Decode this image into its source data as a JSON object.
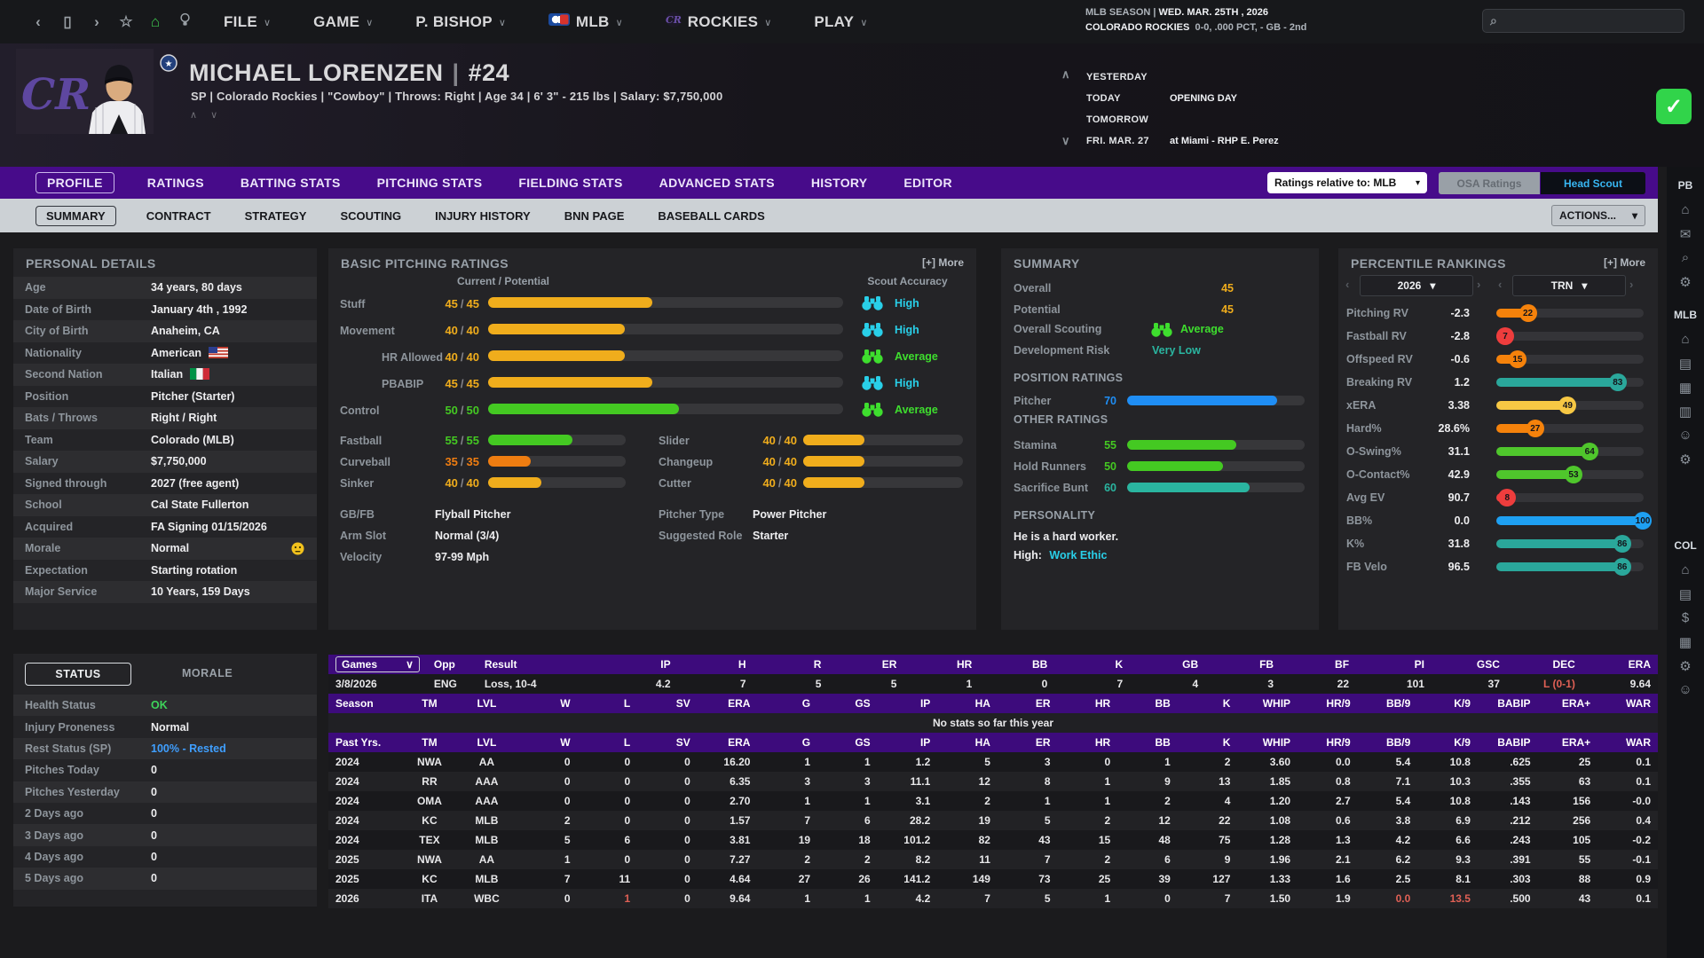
{
  "topbar": {
    "nav_icons": [
      {
        "name": "back-icon",
        "glyph": "‹"
      },
      {
        "name": "window-icon",
        "glyph": "▯"
      },
      {
        "name": "forward-icon",
        "glyph": "›"
      },
      {
        "name": "bookmark-star-icon",
        "glyph": "☆"
      },
      {
        "name": "home-icon",
        "glyph": "⌂",
        "color": "#3ec94e"
      },
      {
        "name": "lightbulb-icon",
        "glyph": "bulb-svg"
      }
    ],
    "menus": [
      {
        "label": "FILE",
        "logo": ""
      },
      {
        "label": "GAME",
        "logo": ""
      },
      {
        "label": "P. BISHOP",
        "logo": ""
      },
      {
        "label": "MLB",
        "logo": "mlb"
      },
      {
        "label": "ROCKIES",
        "logo": "rockies"
      },
      {
        "label": "PLAY",
        "logo": ""
      }
    ],
    "season_line_1a": "MLB SEASON  |",
    "season_line_1b": "WED. MAR. 25TH , 2026",
    "season_line_2a": "COLORADO ROCKIES",
    "season_line_2b": "0-0, .000 PCT, - GB - 2nd",
    "search_icon": "⌕"
  },
  "header": {
    "name": "MICHAEL LORENZEN",
    "sep": "|",
    "number": "#24",
    "subtitle": "SP | Colorado Rockies  |  \"Cowboy\" | Throws: Right  |  Age 34  |  6' 3\"  - 215 lbs  |  Salary: $7,750,000",
    "photo_nav": "∧ ∨",
    "schedule": [
      {
        "label": "YESTERDAY",
        "value": ""
      },
      {
        "label": "TODAY",
        "value": "OPENING DAY"
      },
      {
        "label": "TOMORROW",
        "value": ""
      },
      {
        "label": "FRI. MAR. 27",
        "value": "at Miami - RHP E. Perez"
      }
    ],
    "check_glyph": "✓"
  },
  "tabs_main": {
    "items": [
      "PROFILE",
      "RATINGS",
      "BATTING STATS",
      "PITCHING STATS",
      "FIELDING STATS",
      "ADVANCED STATS",
      "HISTORY",
      "EDITOR"
    ],
    "active": "PROFILE",
    "ratings_dropdown": "Ratings relative to: MLB",
    "osa": "OSA Ratings",
    "head_scout": "Head Scout"
  },
  "tabs_sub": {
    "items": [
      "SUMMARY",
      "CONTRACT",
      "STRATEGY",
      "SCOUTING",
      "INJURY HISTORY",
      "BNN PAGE",
      "BASEBALL CARDS"
    ],
    "active": "SUMMARY",
    "actions": "ACTIONS..."
  },
  "personal": {
    "title": "PERSONAL DETAILS",
    "rows": [
      {
        "label": "Age",
        "value": "34 years, 80 days"
      },
      {
        "label": "Date of Birth",
        "value": "January 4th , 1992"
      },
      {
        "label": "City of Birth",
        "value": "Anaheim, CA"
      },
      {
        "label": "Nationality",
        "value": "American",
        "flag": "us"
      },
      {
        "label": "Second Nation",
        "value": "Italian",
        "flag": "it"
      },
      {
        "label": "Position",
        "value": "Pitcher (Starter)"
      },
      {
        "label": "Bats / Throws",
        "value": "Right / Right"
      },
      {
        "label": "Team",
        "value": "Colorado (MLB)"
      },
      {
        "label": "Salary",
        "value": "$7,750,000"
      },
      {
        "label": "Signed through",
        "value": "2027 (free agent)"
      },
      {
        "label": "School",
        "value": "Cal State Fullerton"
      },
      {
        "label": "Acquired",
        "value": "FA Signing 01/15/2026"
      },
      {
        "label": "Morale",
        "value": "Normal",
        "smiley": true
      },
      {
        "label": "Expectation",
        "value": "Starting rotation"
      },
      {
        "label": "Major Service",
        "value": "10 Years, 159 Days"
      }
    ]
  },
  "status": {
    "button": "STATUS",
    "morale_tab": "MORALE",
    "rows": [
      {
        "label": "Health Status",
        "value": "OK",
        "color": "#3ed45a"
      },
      {
        "label": "Injury Proneness",
        "value": "Normal"
      },
      {
        "label": "Rest Status (SP)",
        "value": "100% - Rested",
        "color": "#3f9fff"
      },
      {
        "label": "Pitches Today",
        "value": "0"
      },
      {
        "label": "Pitches Yesterday",
        "value": "0"
      },
      {
        "label": "2 Days ago",
        "value": "0"
      },
      {
        "label": "3 Days ago",
        "value": "0"
      },
      {
        "label": "4 Days ago",
        "value": "0"
      },
      {
        "label": "5 Days ago",
        "value": "0"
      }
    ]
  },
  "pitching": {
    "title": "BASIC PITCHING RATINGS",
    "more": "[+] More",
    "col_current": "Current / Potential",
    "col_accuracy": "Scout Accuracy",
    "core": [
      {
        "label": "Stuff",
        "indent": false,
        "cur": "45",
        "pot": "45",
        "val": 45,
        "color": "#f0ad1c",
        "acc": "High",
        "acc_color": "#29cfe8"
      },
      {
        "label": "Movement",
        "indent": false,
        "cur": "40",
        "pot": "40",
        "val": 40,
        "color": "#f0ad1c",
        "acc": "High",
        "acc_color": "#29cfe8"
      },
      {
        "label": "HR Allowed",
        "indent": true,
        "cur": "40",
        "pot": "40",
        "val": 40,
        "color": "#f0ad1c",
        "acc": "Average",
        "acc_color": "#3ede2e"
      },
      {
        "label": "PBABIP",
        "indent": true,
        "cur": "45",
        "pot": "45",
        "val": 45,
        "color": "#f0ad1c",
        "acc": "High",
        "acc_color": "#29cfe8"
      },
      {
        "label": "Control",
        "indent": false,
        "cur": "50",
        "pot": "50",
        "val": 50,
        "color": "#44c922",
        "acc": "Average",
        "acc_color": "#3ede2e"
      }
    ],
    "pitches_left": [
      {
        "label": "Fastball",
        "cur": "55",
        "pot": "55",
        "val": 55,
        "color": "#44c922"
      },
      {
        "label": "Curveball",
        "cur": "35",
        "pot": "35",
        "val": 35,
        "color": "#ef7d11"
      },
      {
        "label": "Sinker",
        "cur": "40",
        "pot": "40",
        "val": 40,
        "color": "#f0ad1c"
      }
    ],
    "pitches_right": [
      {
        "label": "Slider",
        "cur": "40",
        "pot": "40",
        "val": 40,
        "color": "#f0ad1c"
      },
      {
        "label": "Changeup",
        "cur": "40",
        "pot": "40",
        "val": 40,
        "color": "#f0ad1c"
      },
      {
        "label": "Cutter",
        "cur": "40",
        "pot": "40",
        "val": 40,
        "color": "#f0ad1c"
      }
    ],
    "info_left": [
      {
        "label": "GB/FB",
        "value": "Flyball Pitcher"
      },
      {
        "label": "Arm Slot",
        "value": "Normal (3/4)"
      },
      {
        "label": "Velocity",
        "value": "97-99 Mph"
      }
    ],
    "info_right": [
      {
        "label": "Pitcher Type",
        "value": "Power Pitcher"
      },
      {
        "label": "Suggested Role",
        "value": "Starter"
      }
    ]
  },
  "summary": {
    "title": "SUMMARY",
    "simple": [
      {
        "label": "Overall",
        "value": "45",
        "color": "#f0ad1c",
        "type": "num"
      },
      {
        "label": "Potential",
        "value": "45",
        "color": "#f0ad1c",
        "type": "num"
      },
      {
        "label": "Overall Scouting",
        "value": "Average",
        "color": "#3ede2e",
        "type": "scout"
      },
      {
        "label": "Development Risk",
        "value": "Very Low",
        "color": "#2ab5a0",
        "type": "text"
      }
    ],
    "position_header": "POSITION RATINGS",
    "position": [
      {
        "label": "Pitcher",
        "val": 70,
        "color": "#1f8ef5"
      }
    ],
    "other_header": "OTHER RATINGS",
    "other": [
      {
        "label": "Stamina",
        "val": 55,
        "color": "#44c922"
      },
      {
        "label": "Hold Runners",
        "val": 50,
        "color": "#44c922"
      },
      {
        "label": "Sacrifice Bunt",
        "val": 60,
        "color": "#2ab5a0"
      }
    ],
    "personality_header": "PERSONALITY",
    "personality_line": "He is a hard worker.",
    "personality_high_label": "High:",
    "personality_high_value": "Work Ethic",
    "high_value_color": "#29cfe8"
  },
  "percentile": {
    "title": "PERCENTILE RANKINGS",
    "more": "[+] More",
    "year": "2026",
    "scope": "TRN",
    "rows": [
      {
        "label": "Pitching RV",
        "value": "-2.3",
        "pct": 22,
        "color": "#f5820b"
      },
      {
        "label": "Fastball RV",
        "value": "-2.8",
        "pct": 7,
        "color": "#ee3d3d"
      },
      {
        "label": "Offspeed RV",
        "value": "-0.6",
        "pct": 15,
        "color": "#f5820b"
      },
      {
        "label": "Breaking RV",
        "value": "1.2",
        "pct": 83,
        "color": "#2aa79b"
      },
      {
        "label": "xERA",
        "value": "3.38",
        "pct": 49,
        "color": "#f7c844"
      },
      {
        "label": "Hard%",
        "value": "28.6%",
        "pct": 27,
        "color": "#f5820b"
      },
      {
        "label": "O-Swing%",
        "value": "31.1",
        "pct": 64,
        "color": "#4fc62c"
      },
      {
        "label": "O-Contact%",
        "value": "42.9",
        "pct": 53,
        "color": "#4fc62c"
      },
      {
        "label": "Avg EV",
        "value": "90.7",
        "pct": 8,
        "color": "#ee3d3d"
      },
      {
        "label": "BB%",
        "value": "0.0",
        "pct": 100,
        "color": "#1ea0f2"
      },
      {
        "label": "K%",
        "value": "31.8",
        "pct": 86,
        "color": "#2aa79b"
      },
      {
        "label": "FB Velo",
        "value": "96.5",
        "pct": 86,
        "color": "#2aa79b"
      }
    ]
  },
  "stats": {
    "games_cols": [
      "Games",
      "Opp",
      "Result",
      "IP",
      "H",
      "R",
      "ER",
      "HR",
      "BB",
      "K",
      "GB",
      "FB",
      "BF",
      "PI",
      "GSC",
      "DEC",
      "ERA"
    ],
    "games_row": {
      "cells": [
        "3/8/2026",
        "ENG",
        "Loss, 10-4",
        "4.2",
        "7",
        "5",
        "5",
        "1",
        "0",
        "7",
        "4",
        "3",
        "22",
        "101",
        "37",
        "L (0-1)",
        "9.64"
      ],
      "red": [
        15
      ]
    },
    "season_cols": [
      "Season",
      "TM",
      "LVL",
      "W",
      "L",
      "SV",
      "ERA",
      "G",
      "GS",
      "IP",
      "HA",
      "ER",
      "HR",
      "BB",
      "K",
      "WHIP",
      "HR/9",
      "BB/9",
      "K/9",
      "BABIP",
      "ERA+",
      "WAR"
    ],
    "no_stats": "No stats so far this year",
    "past_cols": [
      "Past Yrs.",
      "TM",
      "LVL",
      "W",
      "L",
      "SV",
      "ERA",
      "G",
      "GS",
      "IP",
      "HA",
      "ER",
      "HR",
      "BB",
      "K",
      "WHIP",
      "HR/9",
      "BB/9",
      "K/9",
      "BABIP",
      "ERA+",
      "WAR"
    ],
    "past_rows": [
      {
        "cells": [
          "2024",
          "NWA",
          "AA",
          "0",
          "0",
          "0",
          "16.20",
          "1",
          "1",
          "1.2",
          "5",
          "3",
          "0",
          "1",
          "2",
          "3.60",
          "0.0",
          "5.4",
          "10.8",
          ".625",
          "25",
          "0.1"
        ],
        "red": []
      },
      {
        "cells": [
          "2024",
          "RR",
          "AAA",
          "0",
          "0",
          "0",
          "6.35",
          "3",
          "3",
          "11.1",
          "12",
          "8",
          "1",
          "9",
          "13",
          "1.85",
          "0.8",
          "7.1",
          "10.3",
          ".355",
          "63",
          "0.1"
        ],
        "red": []
      },
      {
        "cells": [
          "2024",
          "OMA",
          "AAA",
          "0",
          "0",
          "0",
          "2.70",
          "1",
          "1",
          "3.1",
          "2",
          "1",
          "1",
          "2",
          "4",
          "1.20",
          "2.7",
          "5.4",
          "10.8",
          ".143",
          "156",
          "-0.0"
        ],
        "red": []
      },
      {
        "cells": [
          "2024",
          "KC",
          "MLB",
          "2",
          "0",
          "0",
          "1.57",
          "7",
          "6",
          "28.2",
          "19",
          "5",
          "2",
          "12",
          "22",
          "1.08",
          "0.6",
          "3.8",
          "6.9",
          ".212",
          "256",
          "0.4"
        ],
        "red": []
      },
      {
        "cells": [
          "2024",
          "TEX",
          "MLB",
          "5",
          "6",
          "0",
          "3.81",
          "19",
          "18",
          "101.2",
          "82",
          "43",
          "15",
          "48",
          "75",
          "1.28",
          "1.3",
          "4.2",
          "6.6",
          ".243",
          "105",
          "-0.2"
        ],
        "red": []
      },
      {
        "cells": [
          "2025",
          "NWA",
          "AA",
          "1",
          "0",
          "0",
          "7.27",
          "2",
          "2",
          "8.2",
          "11",
          "7",
          "2",
          "6",
          "9",
          "1.96",
          "2.1",
          "6.2",
          "9.3",
          ".391",
          "55",
          "-0.1"
        ],
        "red": []
      },
      {
        "cells": [
          "2025",
          "KC",
          "MLB",
          "7",
          "11",
          "0",
          "4.64",
          "27",
          "26",
          "141.2",
          "149",
          "73",
          "25",
          "39",
          "127",
          "1.33",
          "1.6",
          "2.5",
          "8.1",
          ".303",
          "88",
          "0.9"
        ],
        "red": []
      },
      {
        "cells": [
          "2026",
          "ITA",
          "WBC",
          "0",
          "1",
          "0",
          "9.64",
          "1",
          "1",
          "4.2",
          "7",
          "5",
          "1",
          "0",
          "7",
          "1.50",
          "1.9",
          "0.0",
          "13.5",
          ".500",
          "43",
          "0.1"
        ],
        "red": [
          4,
          17,
          18
        ]
      }
    ]
  },
  "sidebar": {
    "groups": [
      {
        "label": "PB",
        "icons": [
          [
            "home-icon",
            "⌂"
          ],
          [
            "mail-icon",
            "✉"
          ],
          [
            "search-icon",
            "⌕"
          ],
          [
            "settings-icon",
            "⚙"
          ]
        ]
      },
      {
        "label": "MLB",
        "icons": [
          [
            "home-icon",
            "⌂"
          ],
          [
            "standings-icon",
            "▤"
          ],
          [
            "schedule-icon",
            "▦"
          ],
          [
            "stats-icon",
            "▥"
          ],
          [
            "players-icon",
            "☺"
          ],
          [
            "settings-icon",
            "⚙"
          ]
        ]
      },
      {
        "label": "COL",
        "icons": [
          [
            "home-icon",
            "⌂"
          ],
          [
            "roster-icon",
            "▤"
          ],
          [
            "finance-icon",
            "$"
          ],
          [
            "lineup-icon",
            "▦"
          ],
          [
            "settings-icon",
            "⚙"
          ],
          [
            "player-icon",
            "☺"
          ]
        ]
      }
    ]
  }
}
